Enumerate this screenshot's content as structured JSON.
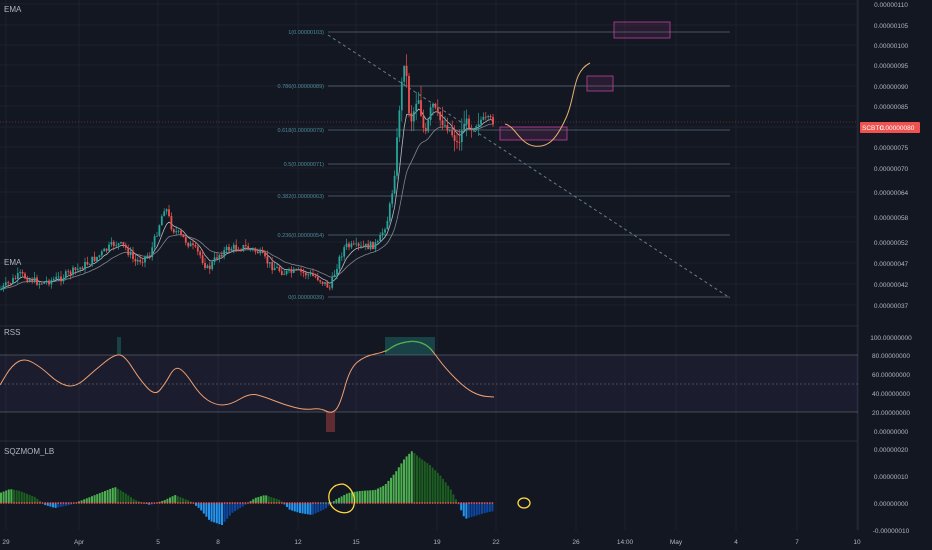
{
  "panes": {
    "main_label": "EMA",
    "rsi_label": "RSS",
    "mom_label": "SQZMOM_LB"
  },
  "price_axis": {
    "ticks": [
      "0.00000110",
      "0.00000105",
      "0.00000100",
      "0.00000095",
      "0.00000090",
      "0.00000085",
      "0.00000080",
      "0.00000075",
      "0.00000070",
      "0.00000064",
      "0.00000058",
      "0.00000052",
      "0.00000047",
      "0.00000042",
      "0.00000037"
    ]
  },
  "current_price": {
    "symbol": "SCBTC",
    "value": "0.00000080"
  },
  "rsi_axis": {
    "ticks": [
      "100.00000000",
      "80.00000000",
      "60.00000000",
      "40.00000000",
      "20.00000000",
      "0.00000000"
    ]
  },
  "mom_axis": {
    "ticks": [
      "0.00000020",
      "0.00000010",
      "0.00000000",
      "-0.00000010"
    ]
  },
  "time_axis": {
    "ticks": [
      "29",
      "Apr",
      "5",
      "8",
      "12",
      "15",
      "19",
      "22",
      "26",
      "14:00",
      "May",
      "4",
      "7",
      "10"
    ]
  },
  "fib_levels": [
    {
      "label": "1(0.00000103)"
    },
    {
      "label": "0.786(0.00000089)"
    },
    {
      "label": "0.618(0.00000079)"
    },
    {
      "label": "0.5(0.00000071)"
    },
    {
      "label": "0.382(0.00000063)"
    },
    {
      "label": "0.236(0.00000054)"
    },
    {
      "label": "0(0.00000039)"
    }
  ],
  "colors": {
    "up": "#26a69a",
    "down": "#ef5350",
    "fib": "#7a8a9a",
    "rsi": "#f0a070",
    "mom_green_strong": "#4caf50",
    "mom_green_weak": "#1b5e20",
    "mom_red_strong": "#2196f3",
    "mom_red_weak": "#0d47a1",
    "projection": "#e8b070",
    "box": "#c040a0"
  },
  "chart_data": {
    "type": "candlestick",
    "x": [
      "29",
      "Apr",
      "5",
      "8",
      "12",
      "15",
      "19",
      "22"
    ],
    "price_range": [
      3.7e-07,
      1.1e-06
    ],
    "close_approx": [
      4.2e-07,
      4.5e-07,
      5.2e-07,
      4.9e-07,
      4.4e-07,
      5.2e-07,
      8.5e-07,
      8e-07
    ],
    "rsi": {
      "range": [
        0,
        100
      ],
      "upper": 80,
      "mid": 50,
      "lower": 20,
      "last": 35
    },
    "momentum": {
      "range": [
        -1e-07,
        2e-07
      ],
      "peak": 1.9e-07
    }
  }
}
